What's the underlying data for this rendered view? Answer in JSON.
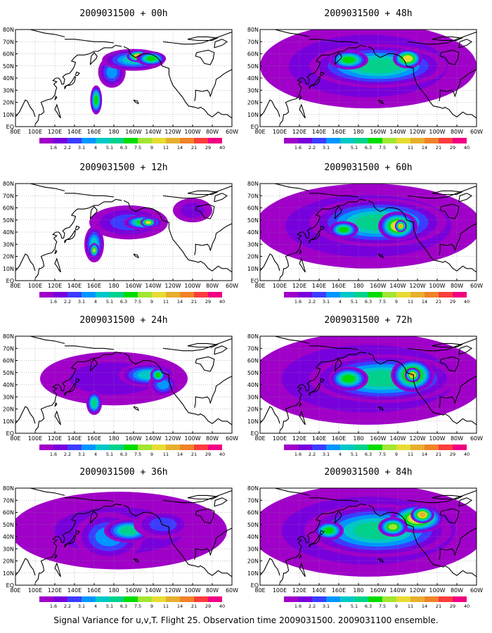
{
  "caption": "Signal Variance for u,v,T. Flight 25. Observation time 2009031500. 2009031100 ensemble.",
  "colorbar": {
    "levels": [
      "1.6",
      "2.2",
      "3.1",
      "4",
      "5.1",
      "6.3",
      "7.5",
      "9",
      "11",
      "14",
      "21",
      "29",
      "40"
    ],
    "colors": [
      "#a000c8",
      "#7800dc",
      "#3c3cff",
      "#0096ff",
      "#00c8c8",
      "#00d28c",
      "#00dc00",
      "#a0e632",
      "#e6dc32",
      "#e6af2d",
      "#f08228",
      "#fa3c3c",
      "#f00082"
    ]
  },
  "axes": {
    "x_ticks": [
      "80E",
      "100E",
      "120E",
      "140E",
      "160E",
      "180",
      "160W",
      "140W",
      "120W",
      "100W",
      "80W",
      "60W"
    ],
    "y_ticks": [
      "EQ",
      "10N",
      "20N",
      "30N",
      "40N",
      "50N",
      "60N",
      "70N",
      "80N"
    ]
  },
  "chart_data": [
    {
      "type": "heatmap",
      "title": "2009031500 + 00h",
      "lead_hours": 0,
      "blobs": [
        {
          "lon": 178,
          "lat": 45,
          "rlon": 14,
          "rlat": 13,
          "lvl": 3
        },
        {
          "lon": 162,
          "lat": 22,
          "rlon": 6,
          "rlat": 12,
          "lvl": 6
        },
        {
          "lon": 200,
          "lat": 55,
          "rlon": 32,
          "rlat": 9,
          "lvl": 4
        },
        {
          "lon": 205,
          "lat": 58,
          "rlon": 12,
          "rlat": 5,
          "lvl": 9
        },
        {
          "lon": 218,
          "lat": 56,
          "rlon": 15,
          "rlat": 6,
          "lvl": 6
        }
      ]
    },
    {
      "type": "heatmap",
      "title": "2009031500 + 48h",
      "lead_hours": 48,
      "blobs": [
        {
          "lon": 190,
          "lat": 50,
          "rlon": 110,
          "rlat": 35,
          "lvl": 2
        },
        {
          "lon": 200,
          "lat": 50,
          "rlon": 70,
          "rlat": 18,
          "lvl": 5
        },
        {
          "lon": 230,
          "lat": 56,
          "rlon": 15,
          "rlat": 8,
          "lvl": 8
        },
        {
          "lon": 170,
          "lat": 55,
          "rlon": 20,
          "rlat": 8,
          "lvl": 6
        }
      ]
    },
    {
      "type": "heatmap",
      "title": "2009031500 + 12h",
      "lead_hours": 12,
      "blobs": [
        {
          "lon": 195,
          "lat": 48,
          "rlon": 40,
          "rlat": 14,
          "lvl": 2
        },
        {
          "lon": 160,
          "lat": 30,
          "rlon": 10,
          "rlat": 15,
          "lvl": 4
        },
        {
          "lon": 160,
          "lat": 25,
          "rlon": 5,
          "rlat": 6,
          "lvl": 7
        },
        {
          "lon": 210,
          "lat": 48,
          "rlon": 20,
          "rlat": 6,
          "lvl": 6
        },
        {
          "lon": 215,
          "lat": 48,
          "rlon": 8,
          "rlat": 4,
          "lvl": 8
        },
        {
          "lon": 260,
          "lat": 58,
          "rlon": 20,
          "rlat": 10,
          "lvl": 1
        }
      ]
    },
    {
      "type": "heatmap",
      "title": "2009031500 + 60h",
      "lead_hours": 60,
      "blobs": [
        {
          "lon": 190,
          "lat": 45,
          "rlon": 115,
          "rlat": 35,
          "lvl": 2
        },
        {
          "lon": 200,
          "lat": 48,
          "rlon": 70,
          "rlat": 20,
          "lvl": 5
        },
        {
          "lon": 220,
          "lat": 45,
          "rlon": 20,
          "rlat": 12,
          "lvl": 8
        },
        {
          "lon": 223,
          "lat": 45,
          "rlon": 6,
          "rlat": 5,
          "lvl": 9
        },
        {
          "lon": 165,
          "lat": 42,
          "rlon": 15,
          "rlat": 7,
          "lvl": 6
        }
      ]
    },
    {
      "type": "heatmap",
      "title": "2009031500 + 24h",
      "lead_hours": 24,
      "blobs": [
        {
          "lon": 180,
          "lat": 45,
          "rlon": 75,
          "rlat": 22,
          "lvl": 1
        },
        {
          "lon": 160,
          "lat": 25,
          "rlon": 8,
          "rlat": 10,
          "lvl": 5
        },
        {
          "lon": 215,
          "lat": 48,
          "rlon": 30,
          "rlat": 10,
          "lvl": 4
        },
        {
          "lon": 230,
          "lat": 40,
          "rlon": 15,
          "rlat": 10,
          "lvl": 3
        },
        {
          "lon": 225,
          "lat": 48,
          "rlon": 8,
          "rlat": 6,
          "lvl": 6
        }
      ]
    },
    {
      "type": "heatmap",
      "title": "2009031500 + 72h",
      "lead_hours": 72,
      "blobs": [
        {
          "lon": 190,
          "lat": 45,
          "rlon": 120,
          "rlat": 38,
          "lvl": 2
        },
        {
          "lon": 205,
          "lat": 45,
          "rlon": 75,
          "rlat": 20,
          "lvl": 5
        },
        {
          "lon": 235,
          "lat": 48,
          "rlon": 22,
          "rlat": 14,
          "lvl": 8
        },
        {
          "lon": 235,
          "lat": 48,
          "rlon": 8,
          "rlat": 6,
          "lvl": 9
        },
        {
          "lon": 170,
          "lat": 45,
          "rlon": 20,
          "rlat": 10,
          "lvl": 6
        }
      ]
    },
    {
      "type": "heatmap",
      "title": "2009031500 + 36h",
      "lead_hours": 36,
      "blobs": [
        {
          "lon": 185,
          "lat": 45,
          "rlon": 110,
          "rlat": 32,
          "lvl": 1
        },
        {
          "lon": 175,
          "lat": 40,
          "rlon": 35,
          "rlat": 20,
          "lvl": 3
        },
        {
          "lon": 195,
          "lat": 45,
          "rlon": 25,
          "rlat": 10,
          "lvl": 5
        },
        {
          "lon": 230,
          "lat": 50,
          "rlon": 30,
          "rlat": 12,
          "lvl": 2
        }
      ]
    },
    {
      "type": "heatmap",
      "title": "2009031500 + 84h",
      "lead_hours": 84,
      "blobs": [
        {
          "lon": 190,
          "lat": 45,
          "rlon": 120,
          "rlat": 38,
          "lvl": 2
        },
        {
          "lon": 200,
          "lat": 45,
          "rlon": 75,
          "rlat": 22,
          "lvl": 5
        },
        {
          "lon": 240,
          "lat": 55,
          "rlon": 28,
          "rlat": 12,
          "lvl": 8
        },
        {
          "lon": 245,
          "lat": 58,
          "rlon": 12,
          "rlat": 7,
          "lvl": 9
        },
        {
          "lon": 150,
          "lat": 45,
          "rlon": 15,
          "rlat": 8,
          "lvl": 6
        },
        {
          "lon": 215,
          "lat": 48,
          "rlon": 15,
          "rlat": 8,
          "lvl": 7
        }
      ]
    }
  ]
}
